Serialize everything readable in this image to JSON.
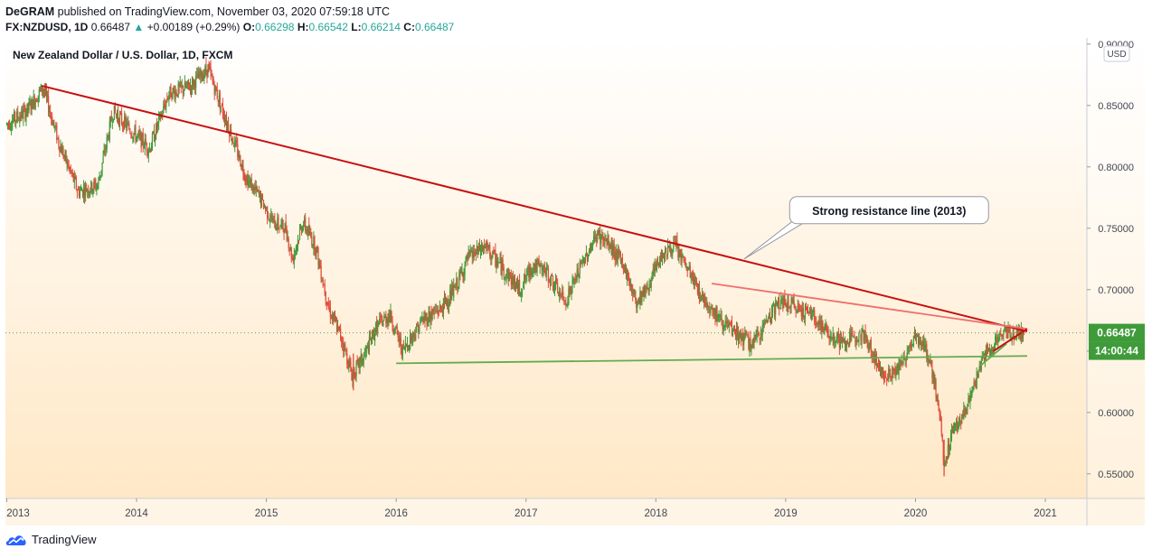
{
  "header": {
    "publisher": "DeGRAM",
    "published_text": "published on TradingView.com, November 03, 2020 07:59:18 UTC",
    "symbol": "FX:NZDUSD, 1D",
    "last": "0.66487",
    "change_arrow": "▲",
    "change": "+0.00189 (+0.29%)",
    "o_label": "O:",
    "o": "0.66298",
    "h_label": "H:",
    "h": "0.66542",
    "l_label": "L:",
    "l": "0.66214",
    "c_label": "C:",
    "c": "0.66487"
  },
  "footer": {
    "brand": "TradingView",
    "logo_icon": "tradingview-cloud-icon"
  },
  "colors": {
    "up": "#26a69a",
    "candle_up": "#3f9b3a",
    "candle_down": "#e04b3a",
    "resistance_major": "#c80f0f",
    "resistance_minor": "#ef6f6f",
    "support": "#63ab4f",
    "price_tag": "#3f9b3a",
    "bg_top": "#ffffff",
    "bg_bottom": "#ffe8c6"
  },
  "chart_data": {
    "type": "candlestick",
    "title": "New Zealand Dollar / U.S. Dollar, 1D, FXCM",
    "currency": "USD",
    "y_scale_side": "right",
    "ylim": [
      0.53,
      0.905
    ],
    "y_ticks": [
      "0.90000",
      "0.85000",
      "0.80000",
      "0.75000",
      "0.70000",
      "0.65000",
      "0.60000",
      "0.55000"
    ],
    "xlim": [
      2012.99,
      2021.32
    ],
    "x_ticks": [
      {
        "year": 2013,
        "label": "2013"
      },
      {
        "year": 2014,
        "label": "2014"
      },
      {
        "year": 2015,
        "label": "2015"
      },
      {
        "year": 2016,
        "label": "2016"
      },
      {
        "year": 2017,
        "label": "2017"
      },
      {
        "year": 2018,
        "label": "2018"
      },
      {
        "year": 2019,
        "label": "2019"
      },
      {
        "year": 2020,
        "label": "2020"
      },
      {
        "year": 2021,
        "label": "2021"
      }
    ],
    "price_path": [
      [
        2013.0,
        0.835
      ],
      [
        2013.15,
        0.845
      ],
      [
        2013.28,
        0.865
      ],
      [
        2013.4,
        0.82
      ],
      [
        2013.55,
        0.78
      ],
      [
        2013.7,
        0.785
      ],
      [
        2013.82,
        0.845
      ],
      [
        2014.0,
        0.825
      ],
      [
        2014.1,
        0.815
      ],
      [
        2014.25,
        0.86
      ],
      [
        2014.4,
        0.865
      ],
      [
        2014.55,
        0.88
      ],
      [
        2014.65,
        0.85
      ],
      [
        2014.75,
        0.82
      ],
      [
        2014.85,
        0.79
      ],
      [
        2014.95,
        0.775
      ],
      [
        2015.05,
        0.755
      ],
      [
        2015.15,
        0.75
      ],
      [
        2015.2,
        0.725
      ],
      [
        2015.28,
        0.755
      ],
      [
        2015.38,
        0.735
      ],
      [
        2015.48,
        0.685
      ],
      [
        2015.58,
        0.66
      ],
      [
        2015.66,
        0.63
      ],
      [
        2015.75,
        0.645
      ],
      [
        2015.85,
        0.67
      ],
      [
        2015.95,
        0.68
      ],
      [
        2016.05,
        0.65
      ],
      [
        2016.2,
        0.675
      ],
      [
        2016.35,
        0.685
      ],
      [
        2016.45,
        0.7
      ],
      [
        2016.55,
        0.725
      ],
      [
        2016.68,
        0.735
      ],
      [
        2016.8,
        0.72
      ],
      [
        2016.95,
        0.7
      ],
      [
        2017.05,
        0.72
      ],
      [
        2017.15,
        0.715
      ],
      [
        2017.3,
        0.69
      ],
      [
        2017.45,
        0.725
      ],
      [
        2017.55,
        0.745
      ],
      [
        2017.65,
        0.735
      ],
      [
        2017.75,
        0.72
      ],
      [
        2017.85,
        0.69
      ],
      [
        2017.95,
        0.705
      ],
      [
        2018.05,
        0.73
      ],
      [
        2018.15,
        0.735
      ],
      [
        2018.25,
        0.715
      ],
      [
        2018.35,
        0.695
      ],
      [
        2018.5,
        0.675
      ],
      [
        2018.6,
        0.665
      ],
      [
        2018.75,
        0.655
      ],
      [
        2018.85,
        0.675
      ],
      [
        2018.95,
        0.69
      ],
      [
        2019.1,
        0.685
      ],
      [
        2019.2,
        0.68
      ],
      [
        2019.32,
        0.665
      ],
      [
        2019.45,
        0.655
      ],
      [
        2019.55,
        0.665
      ],
      [
        2019.62,
        0.66
      ],
      [
        2019.72,
        0.635
      ],
      [
        2019.8,
        0.63
      ],
      [
        2019.9,
        0.64
      ],
      [
        2020.0,
        0.665
      ],
      [
        2020.1,
        0.645
      ],
      [
        2020.18,
        0.605
      ],
      [
        2020.22,
        0.555
      ],
      [
        2020.28,
        0.585
      ],
      [
        2020.38,
        0.6
      ],
      [
        2020.45,
        0.62
      ],
      [
        2020.52,
        0.645
      ],
      [
        2020.6,
        0.655
      ],
      [
        2020.68,
        0.665
      ],
      [
        2020.75,
        0.665
      ],
      [
        2020.84,
        0.66487
      ]
    ],
    "lines": [
      {
        "id": "resistance-2013",
        "from": [
          2013.27,
          0.866
        ],
        "to": [
          2020.86,
          0.666
        ]
      },
      {
        "id": "resistance-2018",
        "from": [
          2018.43,
          0.705
        ],
        "to": [
          2020.86,
          0.668
        ]
      },
      {
        "id": "support-2016",
        "from": [
          2016.0,
          0.64
        ],
        "to": [
          2020.86,
          0.646
        ]
      },
      {
        "id": "support-2020",
        "from": [
          2020.5,
          0.638
        ],
        "to": [
          2020.7,
          0.656
        ]
      },
      {
        "id": "resistance-2020",
        "from": [
          2020.6,
          0.65
        ],
        "to": [
          2020.86,
          0.668
        ]
      }
    ],
    "callout": {
      "text": "Strong resistance line (2013)",
      "anchor": [
        2018.68,
        0.725
      ],
      "box_anchor": [
        2019.1,
        0.75
      ]
    },
    "current_price": {
      "value": 0.66487,
      "label": "0.66487",
      "countdown": "14:00:44"
    }
  }
}
